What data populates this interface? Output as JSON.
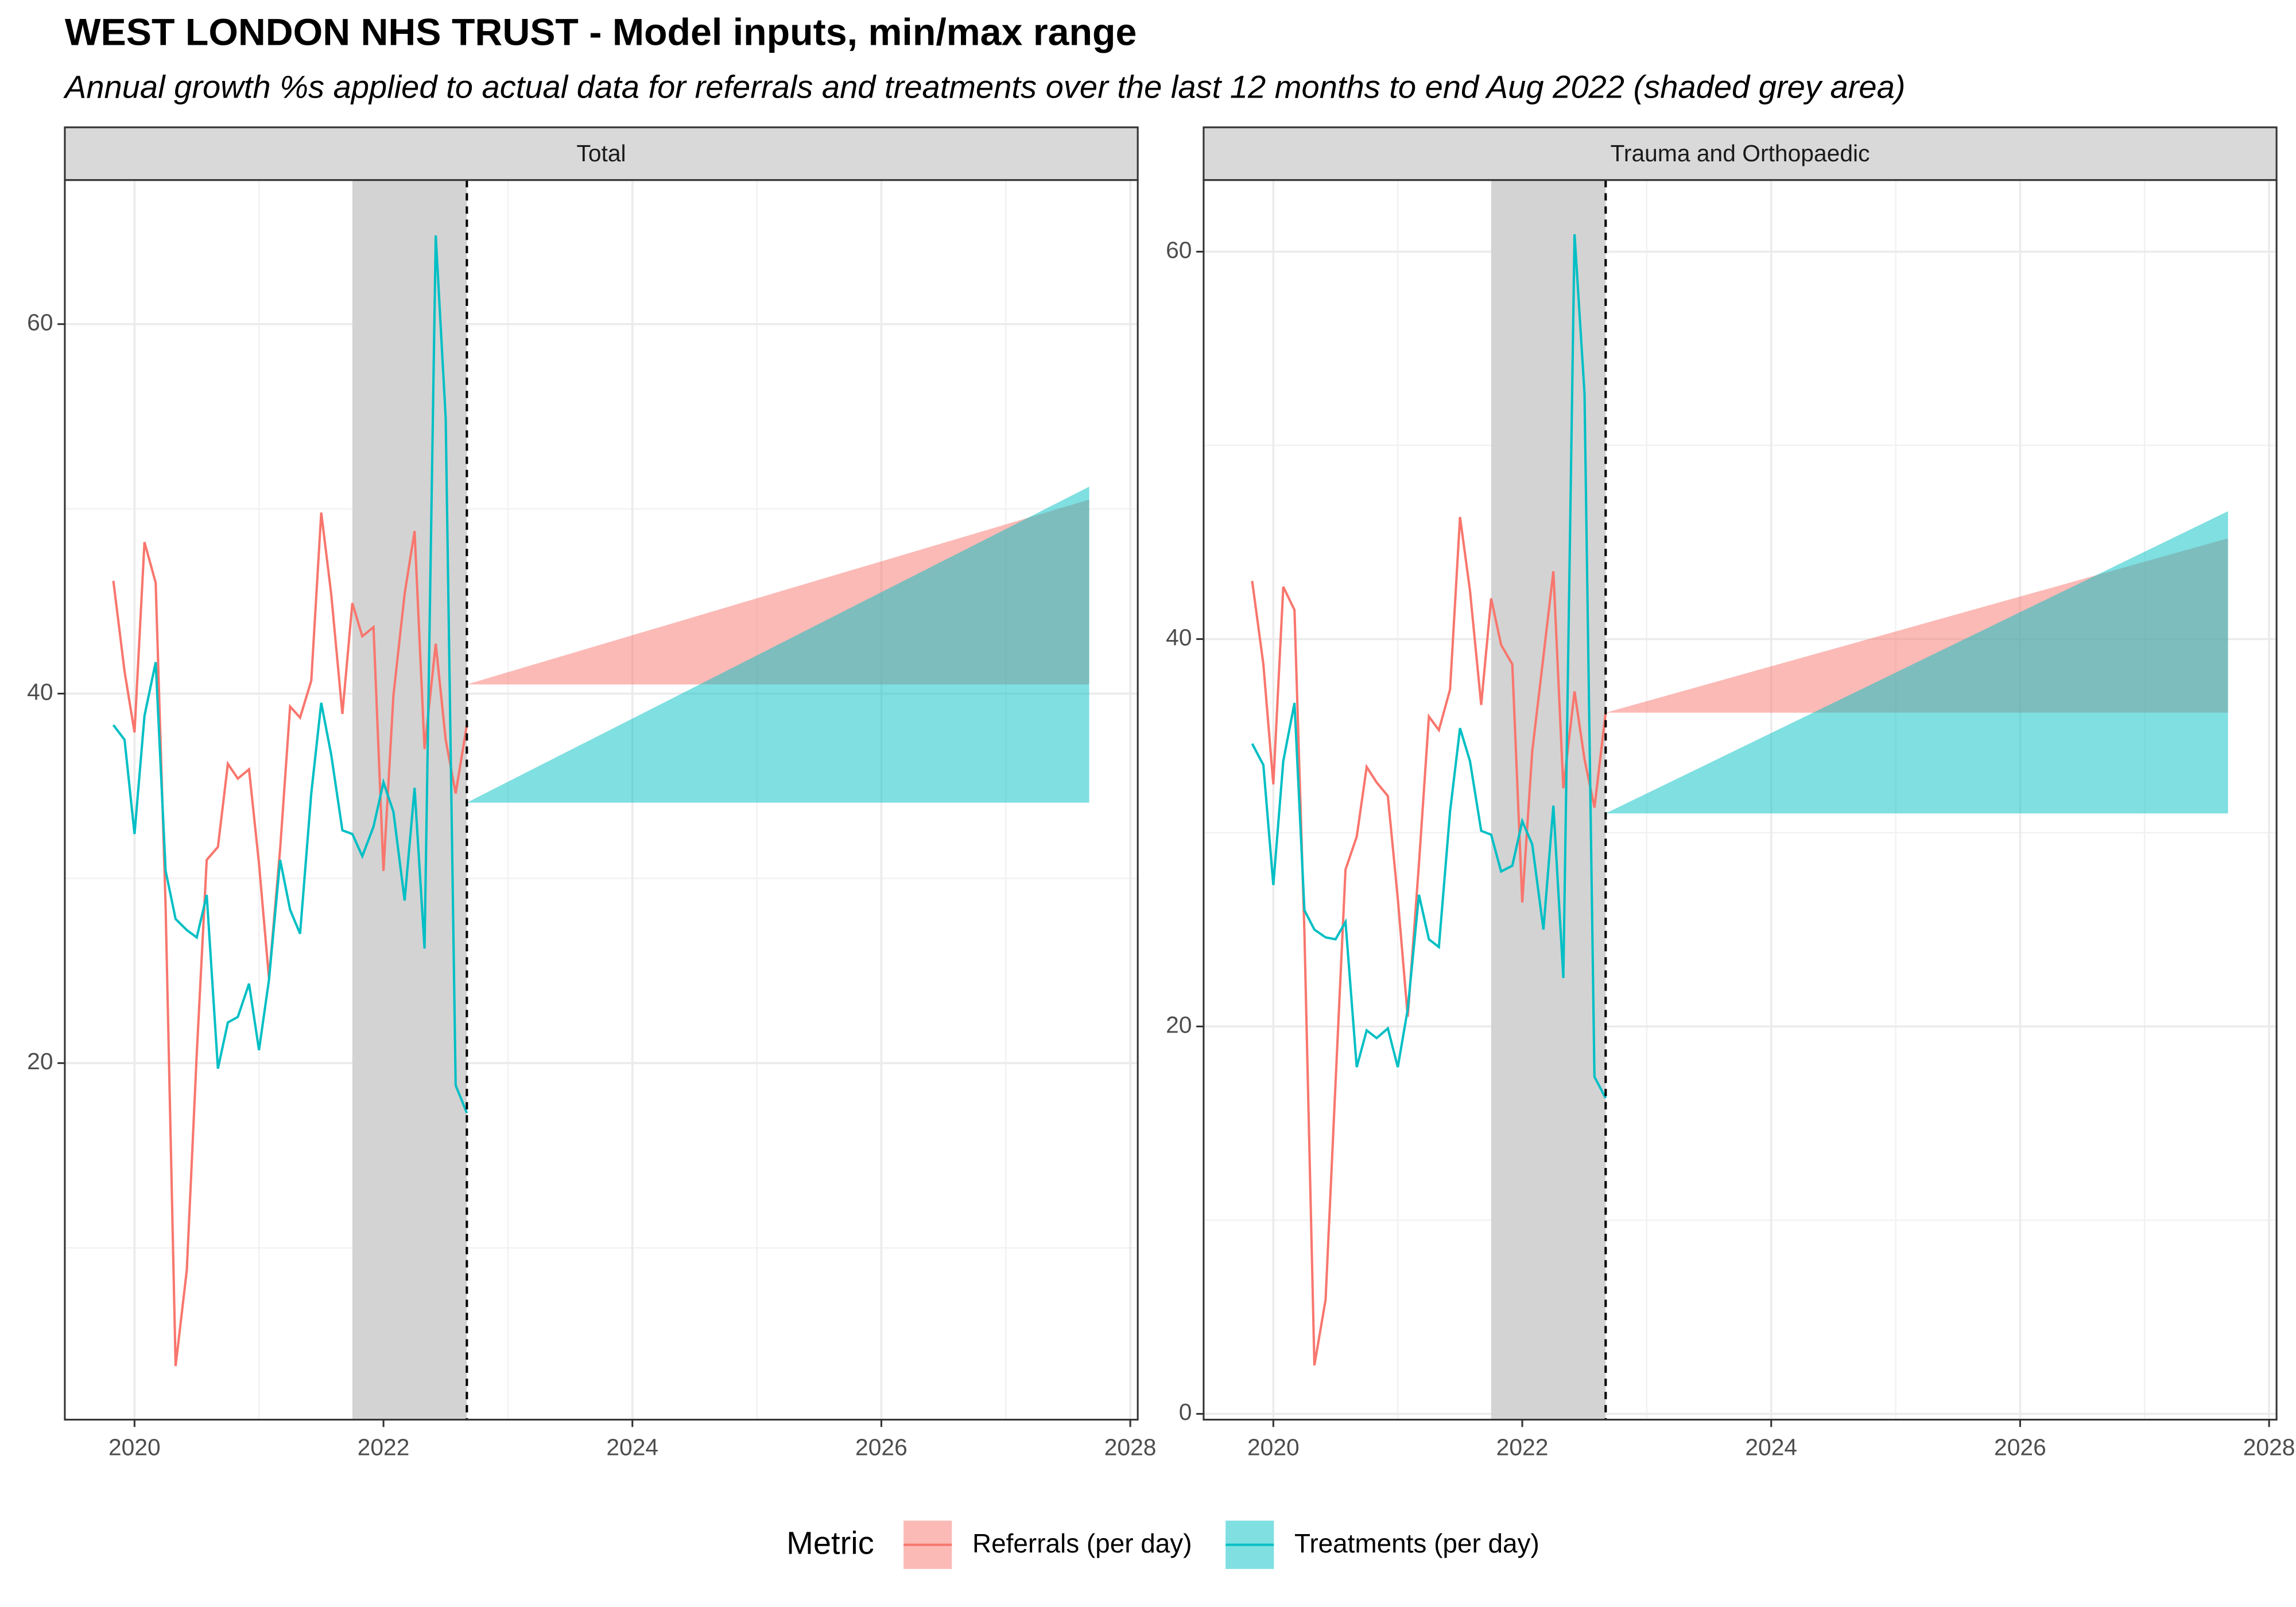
{
  "title": "WEST LONDON NHS TRUST - Model inputs, min/max range",
  "subtitle": "Annual growth %s applied to actual data for referrals and treatments over the last 12 months to end Aug 2022 (shaded grey area)",
  "legend_title": "Metric",
  "chart_data": [
    {
      "type": "line",
      "strip": "Total",
      "x": [
        2019.83,
        2019.92,
        2020,
        2020.08,
        2020.17,
        2020.25,
        2020.33,
        2020.42,
        2020.5,
        2020.58,
        2020.67,
        2020.75,
        2020.83,
        2020.92,
        2021,
        2021.08,
        2021.17,
        2021.25,
        2021.33,
        2021.42,
        2021.5,
        2021.58,
        2021.67,
        2021.75,
        2021.83,
        2021.92,
        2022,
        2022.08,
        2022.17,
        2022.25,
        2022.33,
        2022.42,
        2022.5,
        2022.58,
        2022.67
      ],
      "series": [
        {
          "name": "Referrals (per day)",
          "color": "#F8766D",
          "values": [
            46.1,
            41.2,
            37.9,
            48.2,
            46,
            28.4,
            3.6,
            8.8,
            20.5,
            31,
            31.7,
            36.2,
            35.4,
            35.9,
            30.8,
            24.6,
            31.6,
            39.3,
            38.7,
            40.7,
            49.8,
            45.4,
            38.9,
            44.9,
            43.1,
            43.6,
            30.4,
            39.9,
            45.4,
            48.8,
            37,
            42.7,
            37.5,
            34.6,
            38.3
          ],
          "ribbon": {
            "x": [
              2022.67,
              2027.67
            ],
            "lower": [
              40.5,
              40.5
            ],
            "upper": [
              40.5,
              50.5
            ]
          }
        },
        {
          "name": "Treatments (per day)",
          "color": "#00BFC4",
          "values": [
            38.3,
            37.5,
            32.4,
            38.8,
            41.7,
            30.4,
            27.8,
            27.2,
            26.8,
            29.1,
            19.7,
            22.2,
            22.5,
            24.3,
            20.7,
            24.5,
            31,
            28.3,
            27,
            34.6,
            39.5,
            36.7,
            32.6,
            32.4,
            31.2,
            32.8,
            35.2,
            33.6,
            28.8,
            34.9,
            26.2,
            64.8,
            54.9,
            18.8,
            17.3
          ],
          "ribbon": {
            "x": [
              2022.67,
              2027.67
            ],
            "lower": [
              34.1,
              34.1
            ],
            "upper": [
              34.1,
              51.2
            ]
          }
        }
      ],
      "shade": [
        2021.75,
        2022.67
      ],
      "vline": 2022.67,
      "xlim": [
        2019.44,
        2028.06
      ],
      "xticks": [
        2020,
        2022,
        2024,
        2026,
        2028
      ],
      "ylim": [
        0.7,
        67.8
      ],
      "yticks": [
        20,
        40,
        60
      ],
      "grid": true
    },
    {
      "type": "line",
      "strip": "Trauma and Orthopaedic",
      "x": [
        2019.83,
        2019.92,
        2020,
        2020.08,
        2020.17,
        2020.25,
        2020.33,
        2020.42,
        2020.5,
        2020.58,
        2020.67,
        2020.75,
        2020.83,
        2020.92,
        2021,
        2021.08,
        2021.17,
        2021.25,
        2021.33,
        2021.42,
        2021.5,
        2021.58,
        2021.67,
        2021.75,
        2021.83,
        2021.92,
        2022,
        2022.08,
        2022.17,
        2022.25,
        2022.33,
        2022.42,
        2022.5,
        2022.58,
        2022.67
      ],
      "series": [
        {
          "name": "Referrals (per day)",
          "color": "#F8766D",
          "values": [
            43,
            38.7,
            32.5,
            42.7,
            41.5,
            24.8,
            2.5,
            5.9,
            17.1,
            28.1,
            29.8,
            33.4,
            32.6,
            31.9,
            26.6,
            20.5,
            28.4,
            36,
            35.3,
            37.4,
            46.3,
            42.5,
            36.6,
            42.1,
            39.7,
            38.7,
            26.4,
            34.2,
            39.1,
            43.5,
            32.3,
            37.3,
            33.8,
            31.3,
            36.2
          ],
          "ribbon": {
            "x": [
              2022.67,
              2027.67
            ],
            "lower": [
              36.2,
              36.2
            ],
            "upper": [
              36.2,
              45.2
            ]
          }
        },
        {
          "name": "Treatments (per day)",
          "color": "#00BFC4",
          "values": [
            34.6,
            33.5,
            27.3,
            33.7,
            36.7,
            26,
            25,
            24.6,
            24.5,
            25.4,
            17.9,
            19.8,
            19.4,
            19.9,
            17.9,
            20.9,
            26.8,
            24.5,
            24.1,
            31.1,
            35.4,
            33.7,
            30.1,
            29.9,
            28,
            28.3,
            30.6,
            29.4,
            25,
            31.4,
            22.5,
            60.9,
            52.7,
            17.4,
            16.3
          ],
          "ribbon": {
            "x": [
              2022.67,
              2027.67
            ],
            "lower": [
              31,
              31
            ],
            "upper": [
              31,
              46.6
            ]
          }
        }
      ],
      "shade": [
        2021.75,
        2022.67
      ],
      "vline": 2022.67,
      "xlim": [
        2019.44,
        2028.06
      ],
      "xticks": [
        2020,
        2022,
        2024,
        2026,
        2028
      ],
      "ylim": [
        -0.3,
        63.7
      ],
      "yticks": [
        0,
        20,
        40,
        60
      ],
      "grid": true
    }
  ]
}
